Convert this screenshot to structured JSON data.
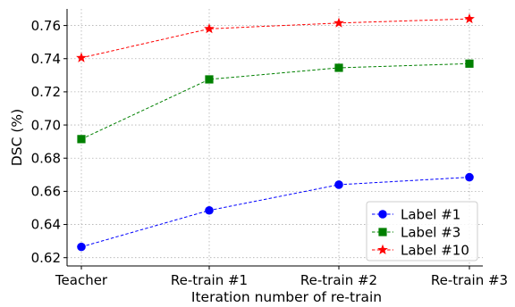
{
  "chart_data": {
    "type": "line",
    "title": "",
    "xlabel": "Iteration number of re-train",
    "ylabel": "DSC (%)",
    "categories": [
      "Teacher",
      "Re-train #1",
      "Re-train #2",
      "Re-train #3"
    ],
    "ylim": [
      0.615,
      0.77
    ],
    "yticks": [
      0.62,
      0.64,
      0.66,
      0.68,
      0.7,
      0.72,
      0.74,
      0.76
    ],
    "ytick_labels": [
      "0.62",
      "0.64",
      "0.66",
      "0.68",
      "0.70",
      "0.72",
      "0.74",
      "0.76"
    ],
    "grid": true,
    "legend_position": "bottom-right",
    "series": [
      {
        "name": "Label #1",
        "color": "#0000ff",
        "marker": "circle",
        "values": [
          0.6265,
          0.6485,
          0.664,
          0.6685
        ]
      },
      {
        "name": "Label #3",
        "color": "#008000",
        "marker": "square",
        "values": [
          0.6915,
          0.7275,
          0.7345,
          0.737
        ]
      },
      {
        "name": "Label #10",
        "color": "#ff0000",
        "marker": "star",
        "values": [
          0.7405,
          0.758,
          0.7615,
          0.764
        ]
      }
    ]
  }
}
